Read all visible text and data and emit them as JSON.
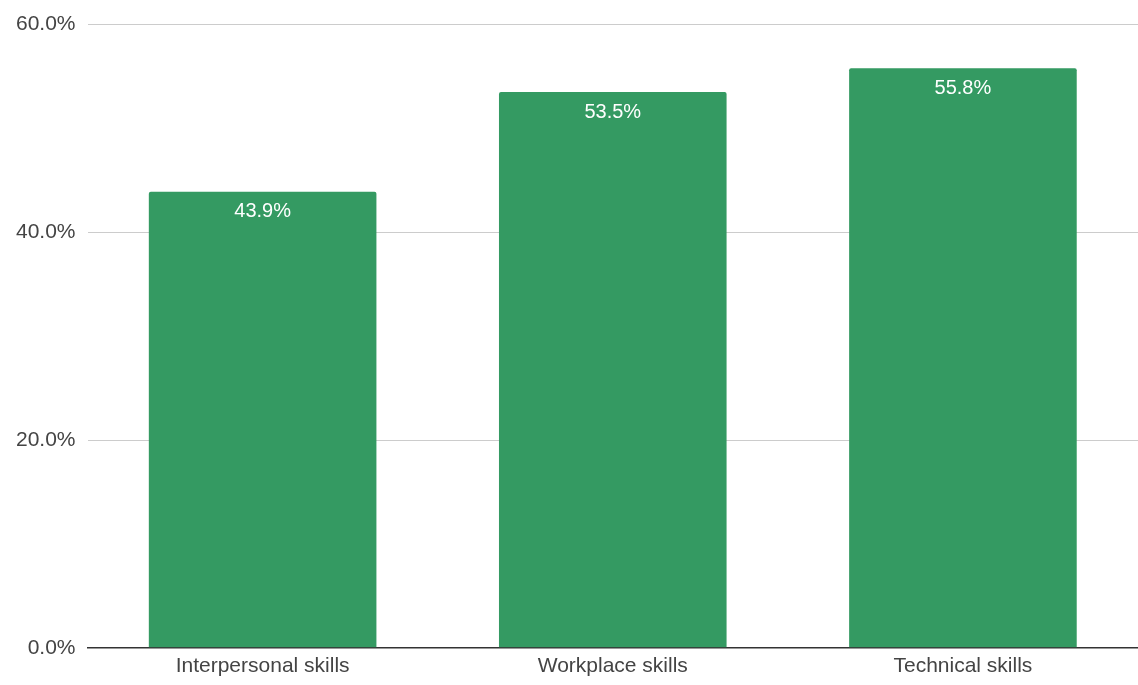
{
  "chart_data": {
    "type": "bar",
    "categories": [
      "Interpersonal skills",
      "Workplace skills",
      "Technical skills"
    ],
    "values": [
      43.9,
      53.5,
      55.8
    ],
    "color": "#349a62",
    "value_labels": [
      "43.9%",
      "53.5%",
      "55.8%"
    ],
    "ylim": [
      0,
      60
    ],
    "yticks": [
      {
        "value": 0,
        "label": "0.0%"
      },
      {
        "value": 20,
        "label": "20.0%"
      },
      {
        "value": 40,
        "label": "40.0%"
      },
      {
        "value": 60,
        "label": "60.0%"
      }
    ],
    "grid": "y",
    "legend": false
  }
}
